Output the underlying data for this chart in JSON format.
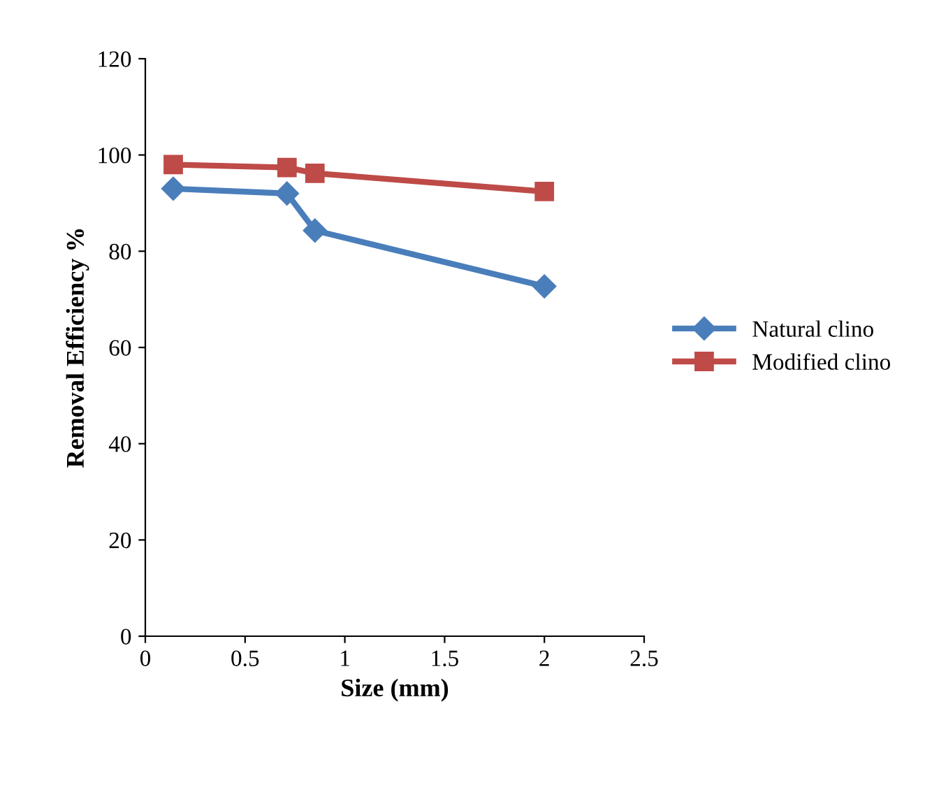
{
  "chart_data": {
    "type": "line",
    "xlabel": "Size (mm)",
    "ylabel": "Removal Efficiency %",
    "series": [
      {
        "name": "Natural clino",
        "color": "#4a7ebb",
        "marker": "diamond",
        "x": [
          0.14,
          0.71,
          0.85,
          2.0
        ],
        "values": [
          93,
          92,
          84.3,
          72.7
        ]
      },
      {
        "name": "Modified clino",
        "color": "#be4b48",
        "marker": "square",
        "x": [
          0.14,
          0.71,
          0.85,
          2.0
        ],
        "values": [
          98,
          97.4,
          96.2,
          92.4
        ]
      }
    ],
    "xlim": [
      0,
      2.5
    ],
    "xticks": [
      0,
      0.5,
      1,
      1.5,
      2,
      2.5
    ],
    "ylim": [
      0,
      120
    ],
    "yticks": [
      0,
      20,
      40,
      60,
      80,
      100,
      120
    ],
    "grid": false,
    "legend": "right",
    "line_style": "solid"
  }
}
